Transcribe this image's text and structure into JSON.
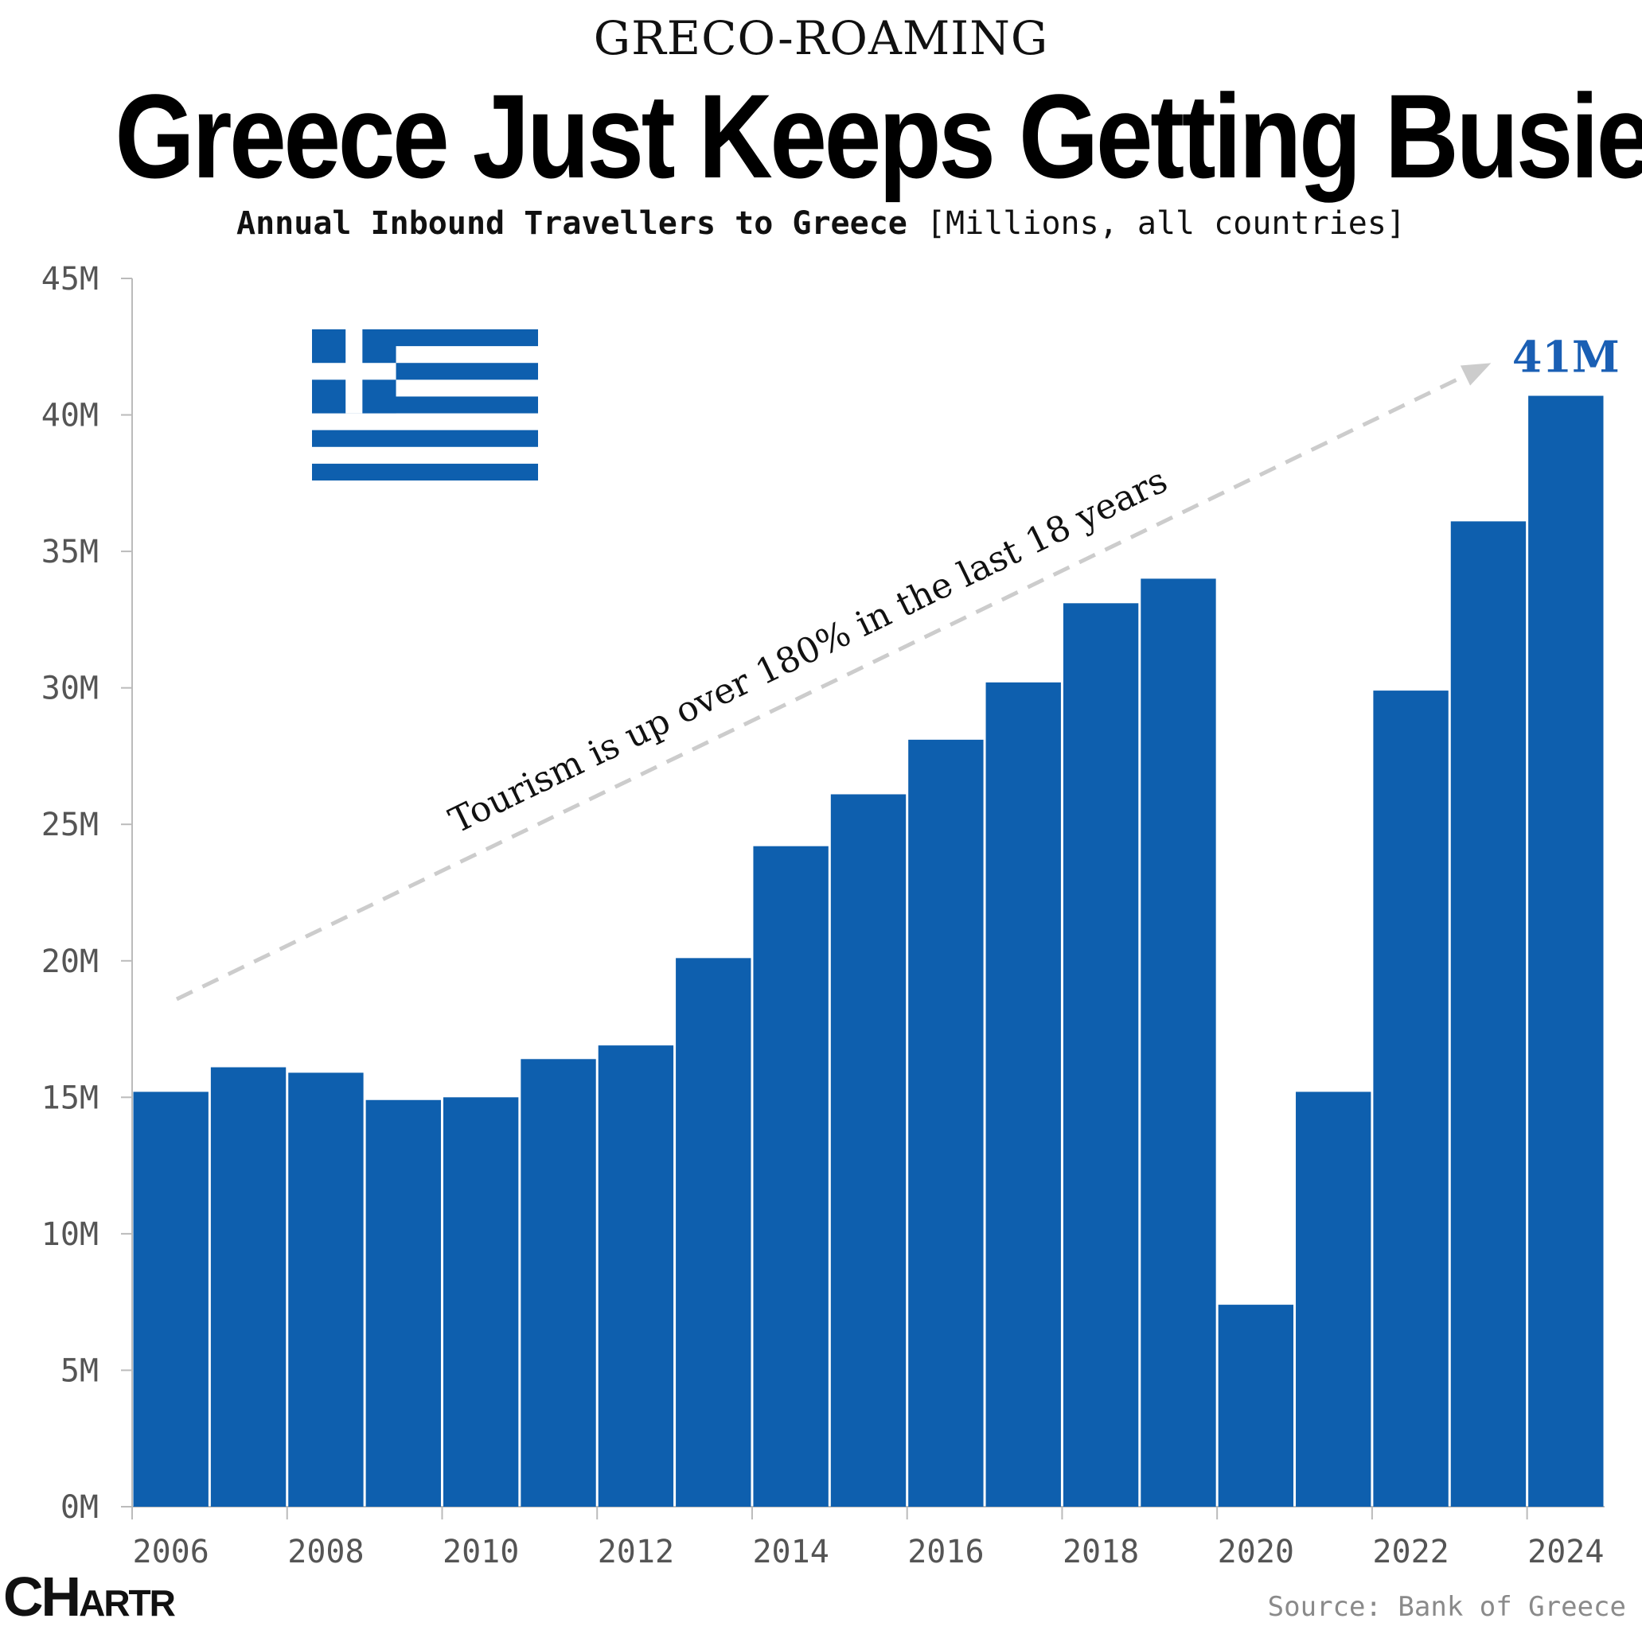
{
  "header": {
    "kicker": "GRECO-ROAMING",
    "title": "Greece Just Keeps Getting Busier",
    "subtitle_bold": "Annual Inbound Travellers to Greece",
    "subtitle_rest": "[Millions, all countries]"
  },
  "footer": {
    "source": "Source: Bank of Greece",
    "logo_big": "CH",
    "logo_small": "ARTR"
  },
  "colors": {
    "bar": "#0e5fae",
    "flag_blue": "#0e5fae",
    "arrow": "#cccccc",
    "peak_label": "#1a5fb4"
  },
  "chart_data": {
    "type": "bar",
    "categories": [
      "2006",
      "2007",
      "2008",
      "2009",
      "2010",
      "2011",
      "2012",
      "2013",
      "2014",
      "2015",
      "2016",
      "2017",
      "2018",
      "2019",
      "2020",
      "2021",
      "2022",
      "2023",
      "2024"
    ],
    "series": [
      {
        "values": [
          15.2,
          16.1,
          15.9,
          14.9,
          15.0,
          16.4,
          16.9,
          20.1,
          24.2,
          26.1,
          28.1,
          30.2,
          33.1,
          34.0,
          7.4,
          15.2,
          29.9,
          36.1,
          40.7
        ]
      }
    ],
    "ylim": [
      0,
      45
    ],
    "y_ticks": [
      "0M",
      "5M",
      "10M",
      "15M",
      "20M",
      "25M",
      "30M",
      "35M",
      "40M",
      "45M"
    ],
    "x_tick_labels": [
      "2006",
      "2008",
      "2010",
      "2012",
      "2014",
      "2016",
      "2018",
      "2020",
      "2022",
      "2024"
    ],
    "annotation": "Tourism is up over 180% in the last 18 years",
    "peak_label": "41M",
    "grid": false,
    "legend": "none"
  }
}
